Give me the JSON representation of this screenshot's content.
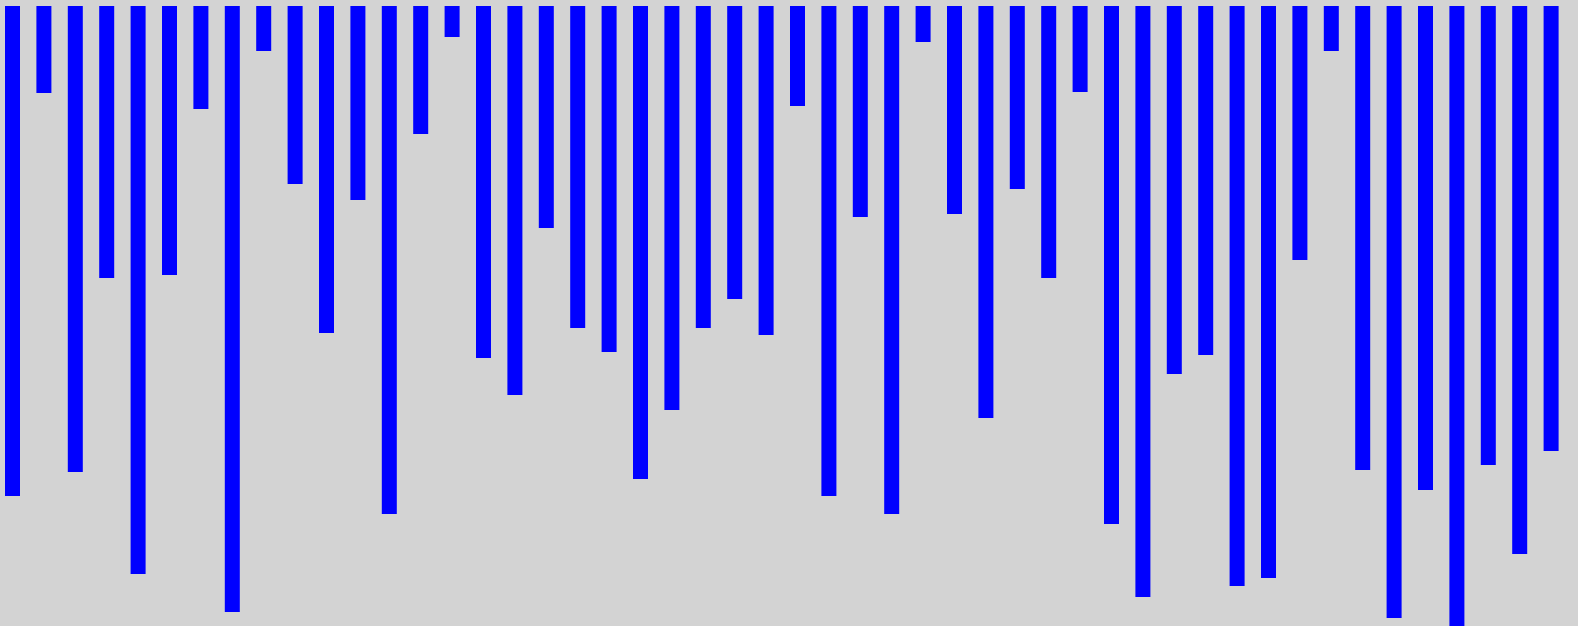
{
  "chart_data": {
    "type": "bar",
    "orientation": "vertical-downward",
    "bar_color": "#0000ff",
    "background_color": "#d3d3d3",
    "grid": false,
    "legend": "none",
    "ylim": [
      0,
      620
    ],
    "values": [
      490,
      87,
      466,
      272,
      568,
      269,
      103,
      606,
      45,
      178,
      327,
      194,
      508,
      128,
      31,
      352,
      389,
      222,
      322,
      346,
      473,
      404,
      322,
      293,
      329,
      100,
      490,
      211,
      508,
      36,
      208,
      412,
      183,
      272,
      86,
      518,
      591,
      368,
      349,
      580,
      572,
      254,
      45,
      464,
      612,
      484,
      620,
      459,
      548,
      445
    ]
  }
}
